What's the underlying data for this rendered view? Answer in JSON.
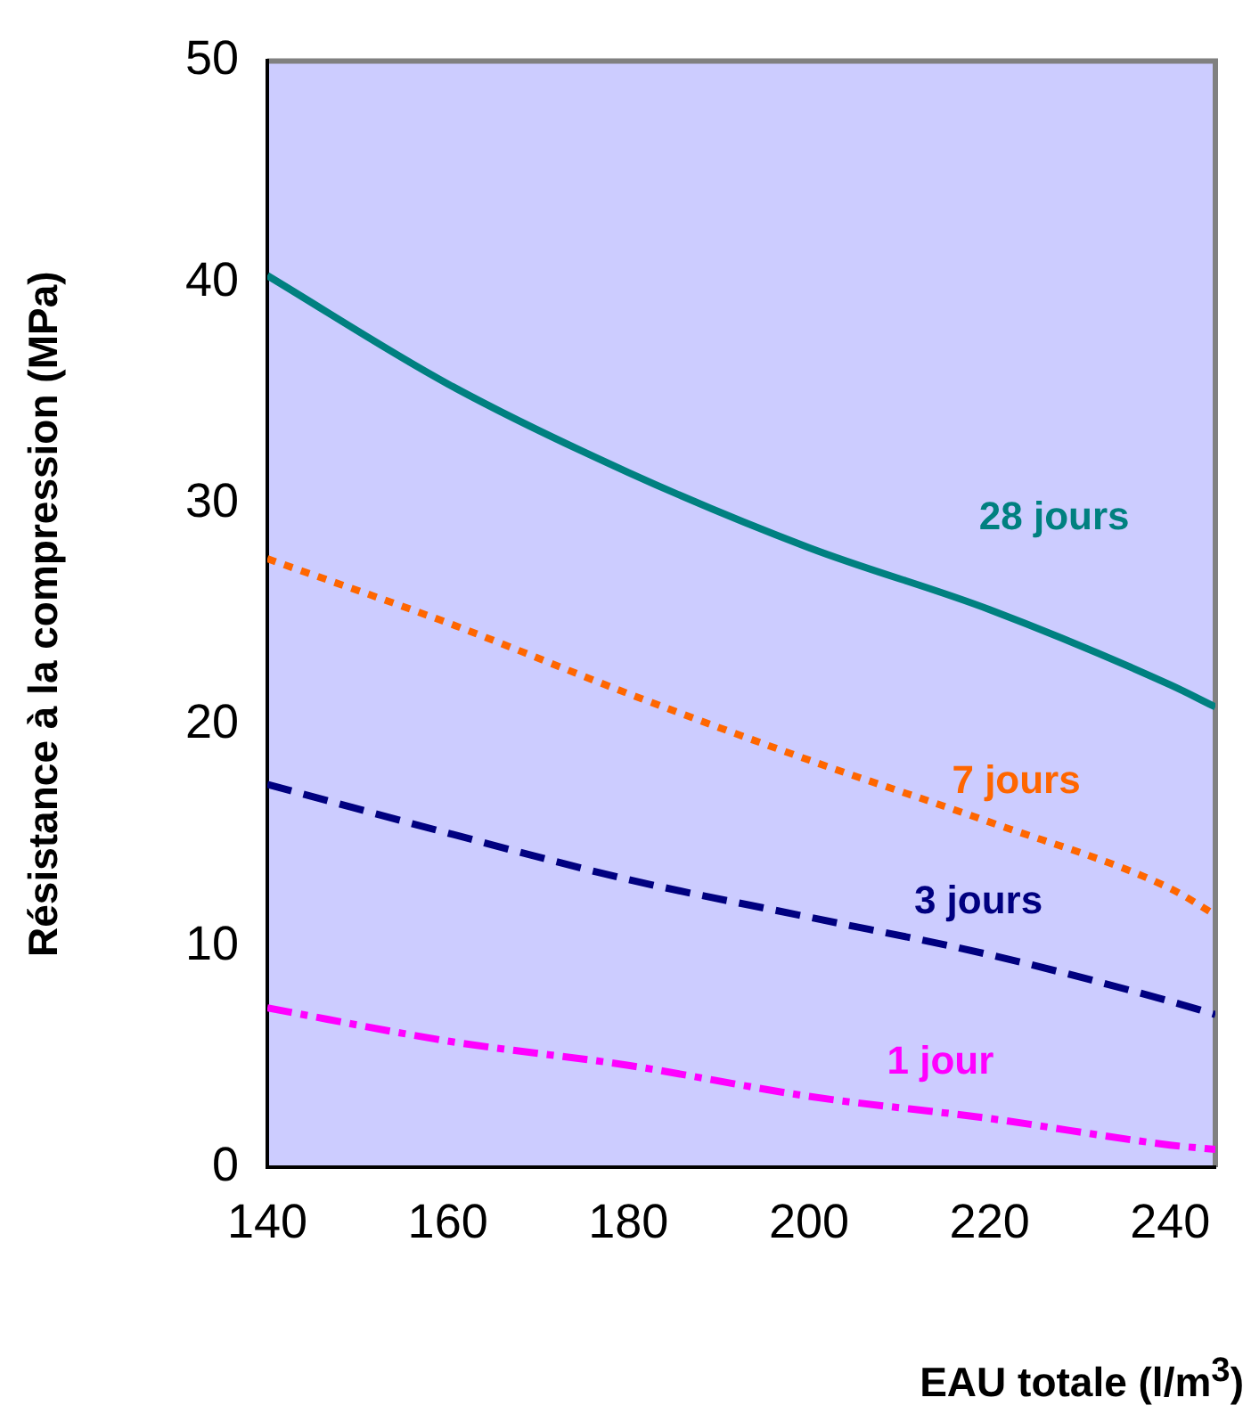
{
  "chart_data": {
    "type": "line",
    "xlabel": "EAU totale (l/m$^{3}$)",
    "ylabel": "Résistance à la compression (MPa)",
    "xlim": [
      140,
      245
    ],
    "xticks": [
      140,
      160,
      180,
      200,
      220,
      240
    ],
    "ylim": [
      0,
      50
    ],
    "yticks": [
      0,
      10,
      20,
      30,
      40,
      50
    ],
    "x": [
      140,
      160,
      180,
      200,
      220,
      240,
      245
    ],
    "series": [
      {
        "name": "28 jours",
        "color": "#008080",
        "line_style": "solid",
        "values": [
          40.3,
          35.4,
          31.4,
          28.0,
          25.2,
          21.8,
          20.8
        ]
      },
      {
        "name": "7 jours",
        "color": "#ff6600",
        "line_style": "dotted",
        "values": [
          27.5,
          24.6,
          21.4,
          18.4,
          15.6,
          12.6,
          11.4
        ]
      },
      {
        "name": "3 jours",
        "color": "#000080",
        "line_style": "dashed",
        "values": [
          17.3,
          15.1,
          13.0,
          11.3,
          9.6,
          7.5,
          6.9
        ]
      },
      {
        "name": "1 jour",
        "color": "#ff00ff",
        "line_style": "dashdot",
        "values": [
          7.2,
          5.7,
          4.6,
          3.2,
          2.2,
          1.0,
          0.8
        ]
      }
    ],
    "grid": false,
    "legend": false,
    "marker": "none"
  }
}
